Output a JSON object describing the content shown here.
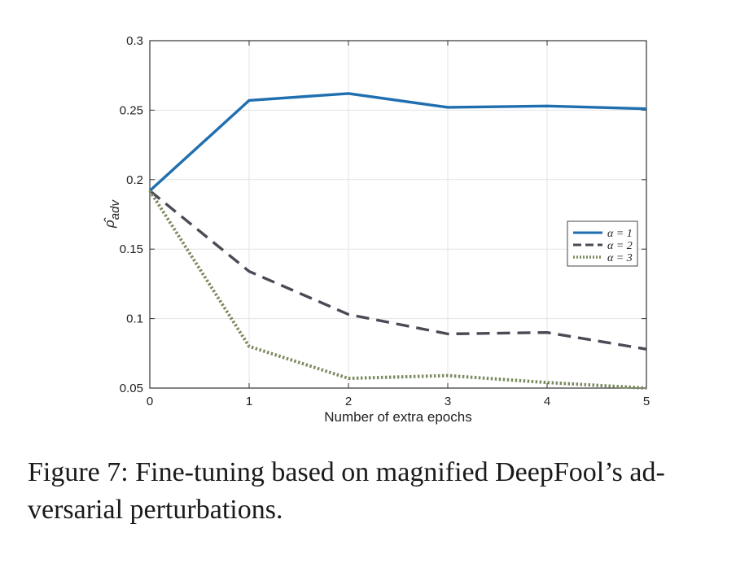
{
  "chart_data": {
    "type": "line",
    "x": [
      0,
      1,
      2,
      3,
      4,
      5
    ],
    "xlabel": "Number of extra epochs",
    "ylabel": "ρ̂",
    "ylabel_sub": "adv",
    "xlim": [
      0,
      5
    ],
    "ylim": [
      0.05,
      0.3
    ],
    "xticks": [
      "0",
      "1",
      "2",
      "3",
      "4",
      "5"
    ],
    "yticks": [
      "0.05",
      "0.1",
      "0.15",
      "0.2",
      "0.25",
      "0.3"
    ],
    "grid": true,
    "legend_position": "right",
    "series": [
      {
        "name": "α = 1",
        "values": [
          0.192,
          0.257,
          0.262,
          0.252,
          0.253,
          0.251
        ],
        "color": "#1f6fb0",
        "style": "solid"
      },
      {
        "name": "α = 2",
        "values": [
          0.192,
          0.134,
          0.103,
          0.089,
          0.09,
          0.078
        ],
        "color": "#4a4a55",
        "style": "dashed"
      },
      {
        "name": "α = 3",
        "values": [
          0.192,
          0.08,
          0.057,
          0.059,
          0.054,
          0.05
        ],
        "color": "#7b8a5e",
        "style": "dotted"
      }
    ]
  },
  "caption": {
    "text": "Figure 7: Fine-tuning based on magnified DeepFool’s ad-versarial perturbations.",
    "line1": "Figure 7: Fine-tuning based on magnified DeepFool’s ad-",
    "line2": "versarial perturbations."
  }
}
